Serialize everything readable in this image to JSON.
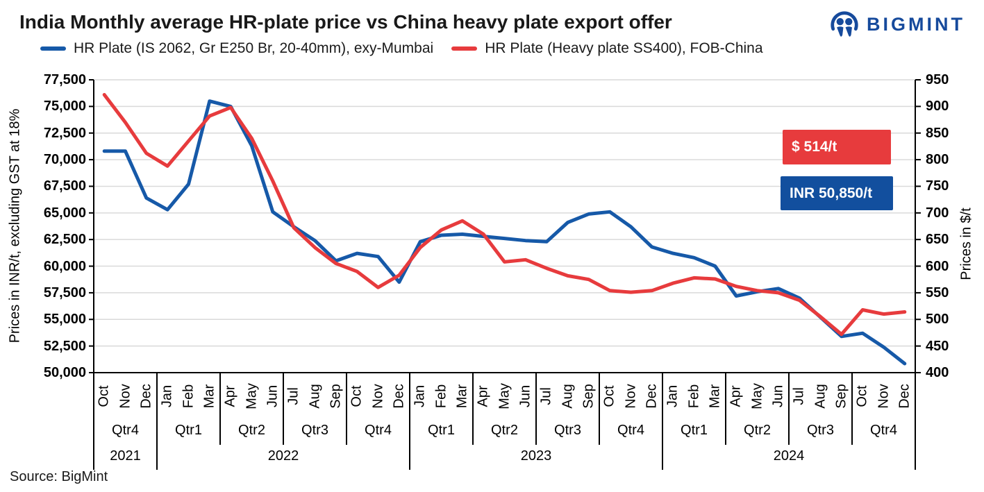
{
  "header": {
    "title": "India Monthly average HR-plate price vs China heavy plate export offer",
    "logo_text": "BIGMINT"
  },
  "source": "Source: BigMint",
  "chart_data": {
    "type": "line",
    "title": "India Monthly average HR-plate price vs China heavy plate export offer",
    "months": [
      "Oct",
      "Nov",
      "Dec",
      "Jan",
      "Feb",
      "Mar",
      "Apr",
      "May",
      "Jun",
      "Jul",
      "Aug",
      "Sep",
      "Oct",
      "Nov",
      "Dec",
      "Jan",
      "Feb",
      "Mar",
      "Apr",
      "May",
      "Jun",
      "Jul",
      "Aug",
      "Sep",
      "Oct",
      "Nov",
      "Dec",
      "Jan",
      "Feb",
      "Mar",
      "Apr",
      "May",
      "Jun",
      "Jul",
      "Aug",
      "Sep",
      "Oct",
      "Nov",
      "Dec"
    ],
    "quarters": [
      "Qtr4",
      "Qtr1",
      "Qtr2",
      "Qtr3",
      "Qtr4",
      "Qtr1",
      "Qtr2",
      "Qtr3",
      "Qtr4",
      "Qtr1",
      "Qtr2",
      "Qtr3",
      "Qtr4"
    ],
    "years": [
      {
        "label": "2021",
        "quarters": 1
      },
      {
        "label": "2022",
        "quarters": 4
      },
      {
        "label": "2023",
        "quarters": 4
      },
      {
        "label": "2024",
        "quarters": 4
      }
    ],
    "left_axis": {
      "title": "Prices in INR/t, excluding GST at 18%",
      "min": 50000,
      "max": 77500,
      "step": 2500,
      "ticks": [
        "77,500",
        "75,000",
        "72,500",
        "70,000",
        "67,500",
        "65,000",
        "62,500",
        "60,000",
        "57,500",
        "55,000",
        "52,500",
        "50,000"
      ]
    },
    "right_axis": {
      "title": "Prices in $/t",
      "min": 400,
      "max": 950,
      "step": 50,
      "ticks": [
        "950",
        "900",
        "850",
        "800",
        "750",
        "700",
        "650",
        "600",
        "550",
        "500",
        "450",
        "400"
      ]
    },
    "grid": "horizontal",
    "legend_position": "top",
    "series": [
      {
        "name": "HR Plate (IS 2062, Gr E250 Br, 20-40mm), exy-Mumbai",
        "axis": "left",
        "color": "#1659a8",
        "values": [
          70800,
          70800,
          66400,
          65300,
          67700,
          75500,
          75000,
          71300,
          65100,
          63700,
          62400,
          60500,
          61200,
          60900,
          58500,
          62300,
          62900,
          63000,
          62800,
          62600,
          62400,
          62300,
          64100,
          64900,
          65100,
          63700,
          61800,
          61200,
          60800,
          60000,
          57200,
          57600,
          57900,
          57000,
          55200,
          53400,
          53700,
          52400,
          50850
        ]
      },
      {
        "name": "HR Plate (Heavy plate SS400), FOB-China",
        "axis": "right",
        "color": "#e73b3d",
        "values": [
          922,
          870,
          812,
          788,
          835,
          882,
          898,
          840,
          760,
          672,
          635,
          605,
          590,
          560,
          583,
          635,
          668,
          685,
          660,
          608,
          612,
          596,
          582,
          575,
          554,
          551,
          554,
          568,
          578,
          576,
          562,
          554,
          550,
          536,
          505,
          472,
          518,
          510,
          514
        ]
      }
    ],
    "annotations": [
      {
        "text": "$ 514/t",
        "bg": "#e73b3d"
      },
      {
        "text": "INR 50,850/t",
        "bg": "#124f9e"
      }
    ]
  }
}
